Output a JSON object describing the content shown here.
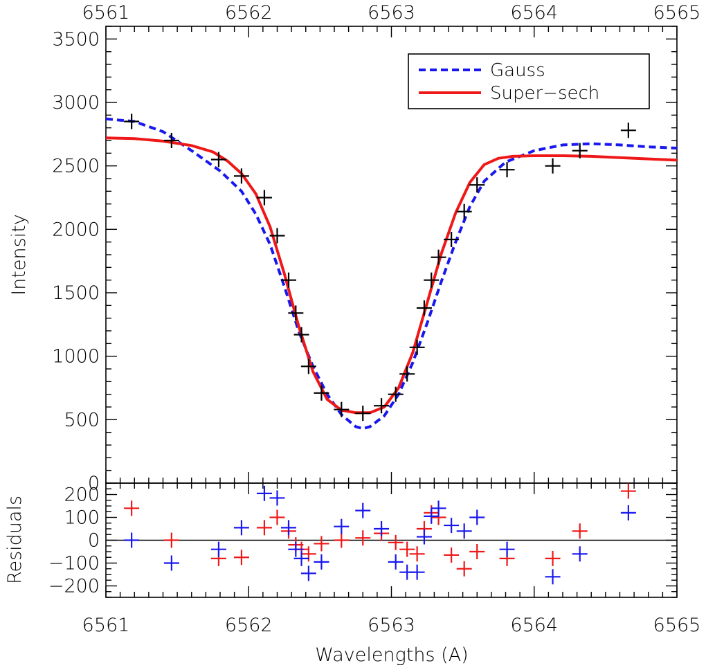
{
  "chart_data": [
    {
      "type": "scatter+line",
      "panel": "top",
      "ylabel": "Intensity",
      "xlim": [
        6561,
        6565
      ],
      "ylim": [
        0,
        3600
      ],
      "x_ticks": [
        "6561",
        "6562",
        "6563",
        "6564",
        "6565"
      ],
      "y_ticks": [
        "0",
        "500",
        "1000",
        "1500",
        "2000",
        "2500",
        "3000",
        "3500"
      ],
      "y_tick_values": [
        0,
        500,
        1000,
        1500,
        2000,
        2500,
        3000,
        3500
      ],
      "legend": {
        "position": "top-right",
        "entries": [
          "Gauss",
          "Super−sech"
        ]
      },
      "series": [
        {
          "name": "Data",
          "marker": "+",
          "color": "#000000",
          "x": [
            6561.18,
            6561.46,
            6561.79,
            6561.95,
            6562.11,
            6562.2,
            6562.28,
            6562.33,
            6562.37,
            6562.42,
            6562.51,
            6562.65,
            6562.8,
            6562.93,
            6563.03,
            6563.11,
            6563.18,
            6563.23,
            6563.28,
            6563.33,
            6563.42,
            6563.51,
            6563.6,
            6563.81,
            6564.13,
            6564.32,
            6564.66
          ],
          "y": [
            2850,
            2700,
            2550,
            2420,
            2250,
            1950,
            1600,
            1340,
            1170,
            920,
            710,
            580,
            550,
            610,
            700,
            860,
            1070,
            1380,
            1600,
            1780,
            1920,
            2140,
            2350,
            2470,
            2500,
            2620,
            2780
          ]
        },
        {
          "name": "Gauss",
          "style": "dashed",
          "color": "#1818ee",
          "x": [
            6561.0,
            6561.2,
            6561.4,
            6561.6,
            6561.8,
            6561.95,
            6562.05,
            6562.15,
            6562.25,
            6562.35,
            6562.45,
            6562.55,
            6562.65,
            6562.75,
            6562.8,
            6562.85,
            6562.95,
            6563.05,
            6563.15,
            6563.25,
            6563.35,
            6563.45,
            6563.55,
            6563.65,
            6563.8,
            6564.0,
            6564.2,
            6564.4,
            6564.6,
            6564.8,
            6565.0
          ],
          "y": [
            2870,
            2850,
            2770,
            2620,
            2460,
            2300,
            2120,
            1880,
            1550,
            1200,
            920,
            700,
            540,
            445,
            430,
            445,
            530,
            700,
            950,
            1260,
            1590,
            1900,
            2180,
            2380,
            2530,
            2620,
            2665,
            2675,
            2665,
            2650,
            2640
          ]
        },
        {
          "name": "Super−sech",
          "style": "solid",
          "color": "#ee1818",
          "x": [
            6561.0,
            6561.2,
            6561.4,
            6561.6,
            6561.75,
            6561.85,
            6561.95,
            6562.05,
            6562.15,
            6562.25,
            6562.35,
            6562.45,
            6562.55,
            6562.65,
            6562.75,
            6562.85,
            6562.95,
            6563.05,
            6563.15,
            6563.25,
            6563.35,
            6563.45,
            6563.55,
            6563.65,
            6563.75,
            6563.85,
            6564.0,
            6564.2,
            6564.4,
            6564.6,
            6564.8,
            6565.0
          ],
          "y": [
            2720,
            2715,
            2695,
            2660,
            2610,
            2540,
            2440,
            2280,
            2020,
            1650,
            1240,
            880,
            660,
            575,
            555,
            555,
            600,
            750,
            1030,
            1420,
            1810,
            2130,
            2370,
            2510,
            2560,
            2575,
            2580,
            2580,
            2575,
            2565,
            2555,
            2545
          ]
        }
      ]
    },
    {
      "type": "scatter",
      "panel": "bottom",
      "title": "",
      "xlabel": "Wavelengths (A)",
      "ylabel": "Residuals",
      "xlim": [
        6561,
        6565
      ],
      "ylim": [
        -250,
        250
      ],
      "x_ticks": [
        "6561",
        "6562",
        "6563",
        "6564",
        "6565"
      ],
      "y_ticks": [
        "−200",
        "−100",
        "0",
        "100",
        "200"
      ],
      "y_tick_values": [
        -200,
        -100,
        0,
        100,
        200
      ],
      "zero_line": 0,
      "series": [
        {
          "name": "Super−sech residuals",
          "marker": "+",
          "color": "#ee1818",
          "x": [
            6561.18,
            6561.46,
            6561.79,
            6561.95,
            6562.11,
            6562.2,
            6562.28,
            6562.33,
            6562.37,
            6562.42,
            6562.51,
            6562.65,
            6562.8,
            6562.93,
            6563.03,
            6563.11,
            6563.18,
            6563.23,
            6563.28,
            6563.33,
            6563.42,
            6563.51,
            6563.6,
            6563.81,
            6564.13,
            6564.32,
            6564.66
          ],
          "y": [
            140,
            0,
            -80,
            -75,
            55,
            100,
            40,
            -20,
            -40,
            -60,
            -15,
            0,
            10,
            30,
            -10,
            -40,
            -60,
            50,
            120,
            100,
            -65,
            -125,
            -50,
            -80,
            -80,
            40,
            215
          ]
        },
        {
          "name": "Gauss residuals",
          "marker": "+",
          "color": "#1818ee",
          "x": [
            6561.18,
            6561.46,
            6561.79,
            6561.95,
            6562.11,
            6562.2,
            6562.28,
            6562.33,
            6562.37,
            6562.42,
            6562.51,
            6562.65,
            6562.8,
            6562.93,
            6563.03,
            6563.11,
            6563.18,
            6563.23,
            6563.28,
            6563.33,
            6563.42,
            6563.51,
            6563.6,
            6563.81,
            6564.13,
            6564.32,
            6564.66
          ],
          "y": [
            0,
            -100,
            -40,
            55,
            205,
            185,
            55,
            -40,
            -80,
            -145,
            -95,
            60,
            130,
            50,
            -95,
            -140,
            -140,
            15,
            105,
            140,
            65,
            40,
            100,
            -40,
            -160,
            -60,
            120
          ]
        }
      ]
    }
  ]
}
